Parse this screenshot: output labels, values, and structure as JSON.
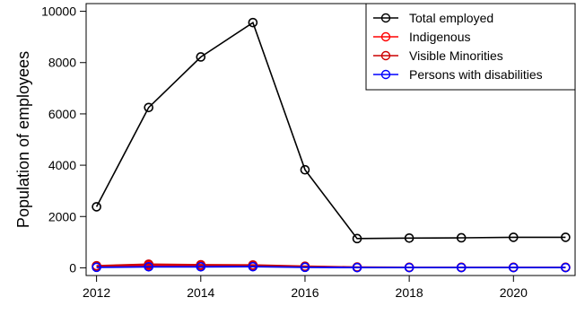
{
  "chart_data": {
    "type": "line",
    "title": "",
    "xlabel": "",
    "ylabel": "Population of employees",
    "xlim": [
      2011.8,
      2021.2
    ],
    "ylim": [
      -300,
      10300
    ],
    "x_ticks": [
      2012,
      2014,
      2016,
      2018,
      2020
    ],
    "y_ticks": [
      0,
      2000,
      4000,
      6000,
      8000,
      10000
    ],
    "grid": false,
    "legend_position": "top-right",
    "x": [
      2012,
      2013,
      2014,
      2015,
      2016,
      2017,
      2018,
      2019,
      2020,
      2021
    ],
    "series": [
      {
        "name": "Total employed",
        "color": "#000000",
        "marker": "circle",
        "values": [
          2380,
          6250,
          8220,
          9560,
          3820,
          1140,
          1160,
          1170,
          1190,
          1190
        ]
      },
      {
        "name": "Indigenous",
        "color": "#ff0000",
        "marker": "circle",
        "values": [
          60,
          90,
          80,
          90,
          50,
          20,
          15,
          15,
          15,
          15
        ]
      },
      {
        "name": "Visible Minorities",
        "color": "#cc0000",
        "marker": "circle",
        "values": [
          80,
          140,
          120,
          110,
          60,
          30,
          20,
          20,
          20,
          20
        ]
      },
      {
        "name": "Persons with disabilities",
        "color": "#0000ff",
        "marker": "circle",
        "values": [
          20,
          40,
          40,
          45,
          20,
          10,
          10,
          10,
          10,
          10
        ]
      }
    ]
  }
}
